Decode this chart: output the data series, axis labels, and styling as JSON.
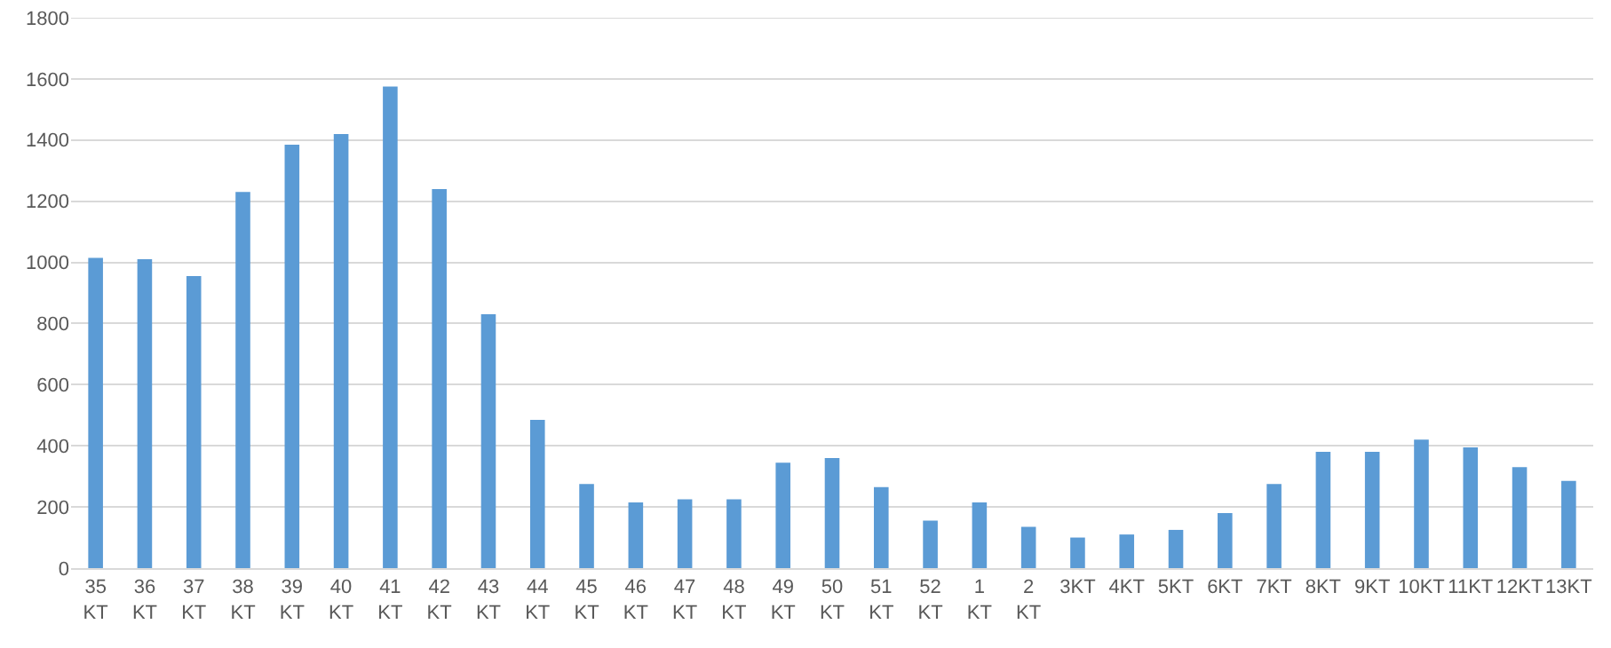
{
  "chart_data": {
    "type": "bar",
    "categories": [
      "35 KT",
      "36 KT",
      "37 KT",
      "38 KT",
      "39 KT",
      "40 KT",
      "41 KT",
      "42 KT",
      "43 KT",
      "44 KT",
      "45 KT",
      "46 KT",
      "47 KT",
      "48 KT",
      "49 KT",
      "50 KT",
      "51 KT",
      "52 KT",
      "1 KT",
      "2 KT",
      "3KT",
      "4KT",
      "5KT",
      "6KT",
      "7KT",
      "8KT",
      "9KT",
      "10KT",
      "11KT",
      "12KT",
      "13KT"
    ],
    "values": [
      1015,
      1010,
      955,
      1230,
      1385,
      1420,
      1575,
      1240,
      830,
      485,
      275,
      215,
      225,
      225,
      345,
      360,
      265,
      155,
      215,
      135,
      100,
      110,
      125,
      180,
      275,
      380,
      380,
      420,
      395,
      330,
      285
    ],
    "color": "#5b9bd5",
    "ylim": [
      0,
      1800
    ],
    "yticks": [
      0,
      200,
      400,
      600,
      800,
      1000,
      1200,
      1400,
      1600,
      1800
    ],
    "grid": "y"
  }
}
